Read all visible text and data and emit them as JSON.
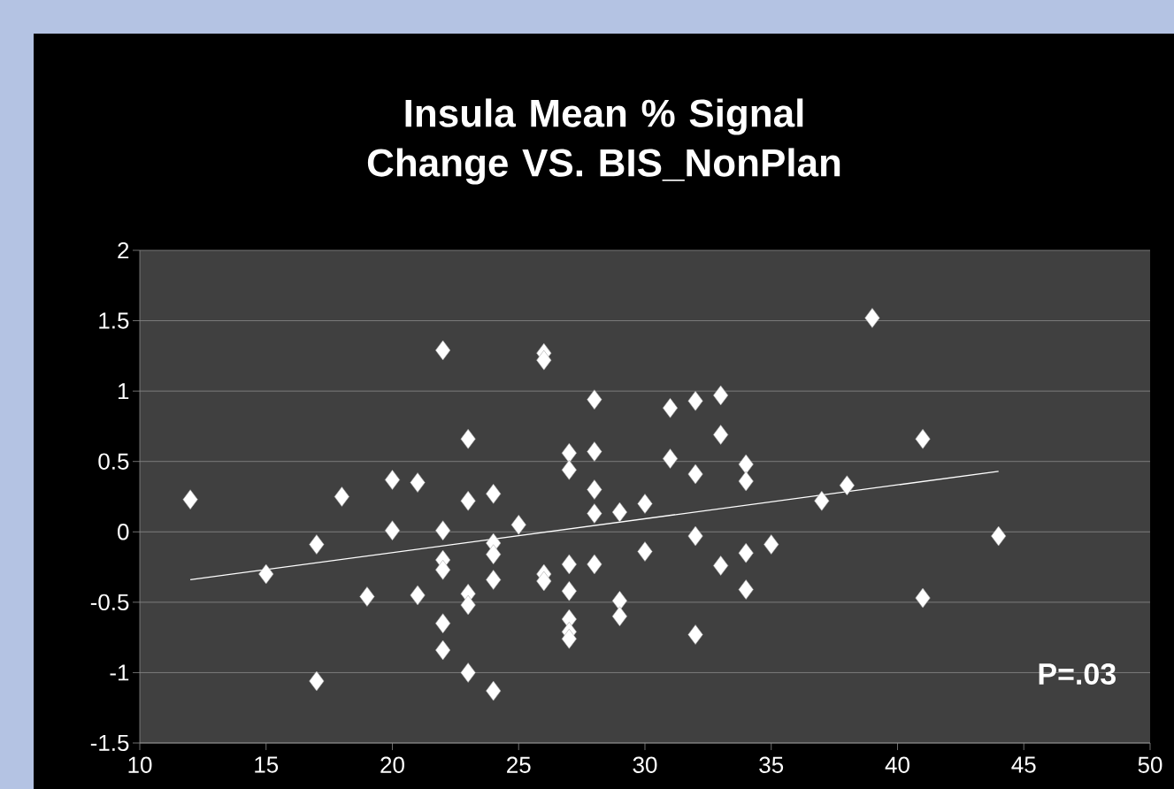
{
  "chart_data": {
    "type": "scatter",
    "title": "Insula Mean % Signal Change VS. BIS_NonPlan",
    "xlim": [
      10,
      50
    ],
    "ylim": [
      -1.5,
      2
    ],
    "xticks": [
      10,
      15,
      20,
      25,
      30,
      35,
      40,
      45,
      50
    ],
    "yticks": [
      -1.5,
      -1,
      -0.5,
      0,
      0.5,
      1,
      1.5,
      2
    ],
    "grid": "y",
    "marker": "diamond",
    "annotations": [
      "P=.03"
    ],
    "series": [
      {
        "color": "#ffffff",
        "x": [
          12,
          22,
          23,
          20,
          21,
          18,
          23,
          24,
          25,
          20,
          22,
          17,
          24,
          24,
          22,
          22,
          15,
          24,
          19,
          21,
          23,
          23,
          22,
          22,
          23,
          17,
          24,
          26,
          26,
          28,
          31,
          32,
          33,
          33,
          27,
          28,
          27,
          31,
          34,
          32,
          34,
          28,
          37,
          38,
          30,
          29,
          28,
          32,
          35,
          30,
          34,
          27,
          28,
          33,
          26,
          26,
          27,
          34,
          29,
          29,
          27,
          27,
          27,
          32,
          39,
          41,
          44,
          41
        ],
        "values": [
          0.23,
          1.29,
          0.66,
          0.37,
          0.35,
          0.25,
          0.22,
          0.27,
          0.05,
          0.01,
          0.01,
          -0.09,
          -0.08,
          -0.16,
          -0.2,
          -0.27,
          -0.3,
          -0.34,
          -0.46,
          -0.45,
          -0.44,
          -0.52,
          -0.65,
          -0.84,
          -1.0,
          -1.06,
          -1.13,
          1.27,
          1.22,
          0.94,
          0.88,
          0.93,
          0.97,
          0.69,
          0.56,
          0.57,
          0.44,
          0.52,
          0.48,
          0.41,
          0.36,
          0.3,
          0.22,
          0.33,
          0.2,
          0.14,
          0.13,
          -0.03,
          -0.09,
          -0.14,
          -0.15,
          -0.23,
          -0.23,
          -0.24,
          -0.3,
          -0.35,
          -0.42,
          -0.41,
          -0.49,
          -0.6,
          -0.62,
          -0.71,
          -0.76,
          -0.73,
          1.52,
          0.66,
          -0.03,
          -0.47
        ]
      },
      {
        "type": "line",
        "marker": "none",
        "color": "#ffffff",
        "x": [
          12,
          44
        ],
        "values": [
          -0.34,
          0.43
        ]
      }
    ]
  }
}
